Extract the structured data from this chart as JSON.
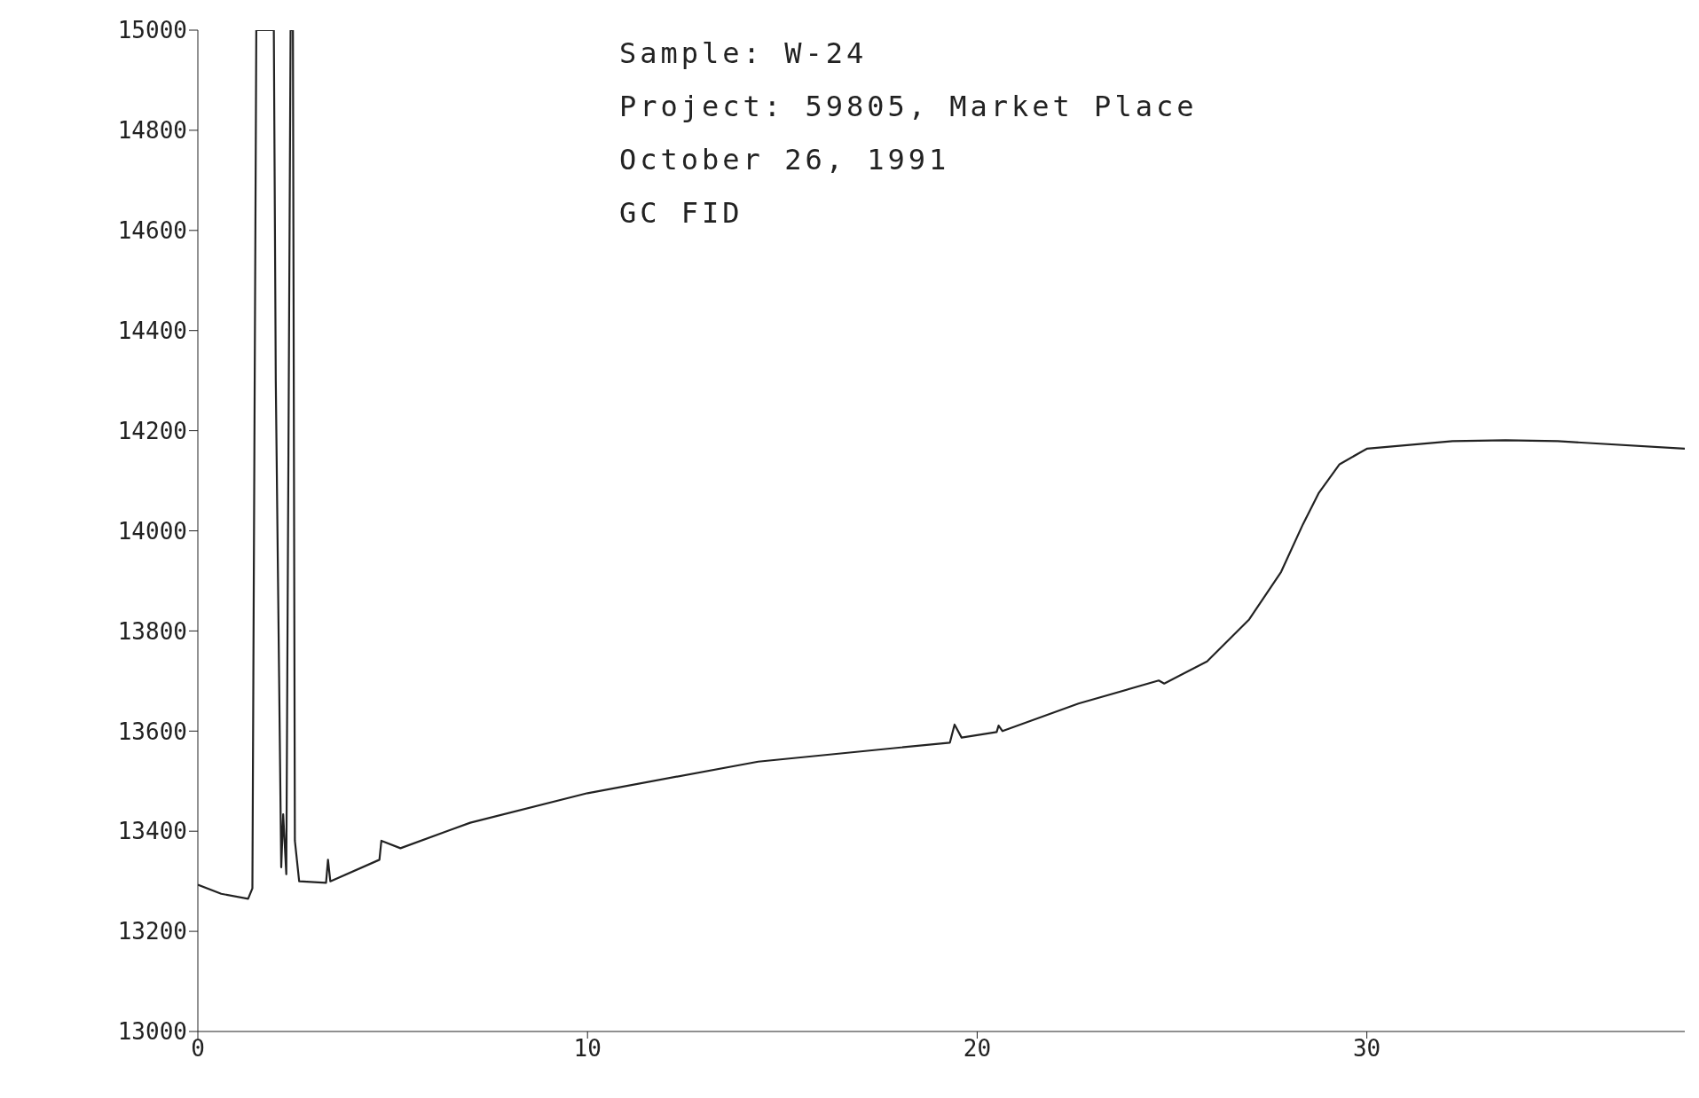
{
  "chart_data": {
    "type": "line",
    "annotations": [
      "Sample: W-24",
      "Project: 59805, Market Place",
      "October 26, 1991",
      "GC FID"
    ],
    "x": [
      0,
      0.6,
      1.29,
      1.4,
      1.5,
      1.56,
      1.95,
      2.0,
      2.14,
      2.19,
      2.27,
      2.38,
      2.44,
      2.49,
      2.6,
      3.29,
      3.34,
      3.4,
      4.66,
      4.71,
      5.2,
      6.99,
      10,
      14.38,
      19.3,
      19.42,
      19.6,
      20.5,
      20.55,
      20.65,
      22.6,
      24.66,
      24.8,
      25.9,
      26.98,
      27.8,
      28.36,
      28.77,
      29.3,
      30,
      32.2,
      33.56,
      34.9,
      38.16
    ],
    "series": [
      {
        "color": "#222222",
        "values": [
          13293,
          13275,
          13265,
          13286,
          15000,
          15000,
          15000,
          14300,
          13328,
          13434,
          13314,
          15000,
          15000,
          13381,
          13300,
          13297,
          13343,
          13300,
          13343,
          13381,
          13366,
          13417,
          13476,
          13539,
          13577,
          13613,
          13587,
          13598,
          13611,
          13600,
          13655,
          13701,
          13695,
          13739,
          13823,
          13918,
          14013,
          14076,
          14133,
          14164,
          14179,
          14181,
          14179,
          14164
        ]
      }
    ],
    "xlim": [
      0,
      38.16
    ],
    "xticks": [
      0,
      10,
      20,
      30
    ],
    "ylim": [
      13000,
      15000
    ],
    "yticks": [
      13000,
      13200,
      13400,
      13600,
      13800,
      14000,
      14200,
      14400,
      14600,
      14800,
      15000
    ],
    "grid": false,
    "legend": false,
    "marker": "none",
    "line_style": "solid"
  }
}
